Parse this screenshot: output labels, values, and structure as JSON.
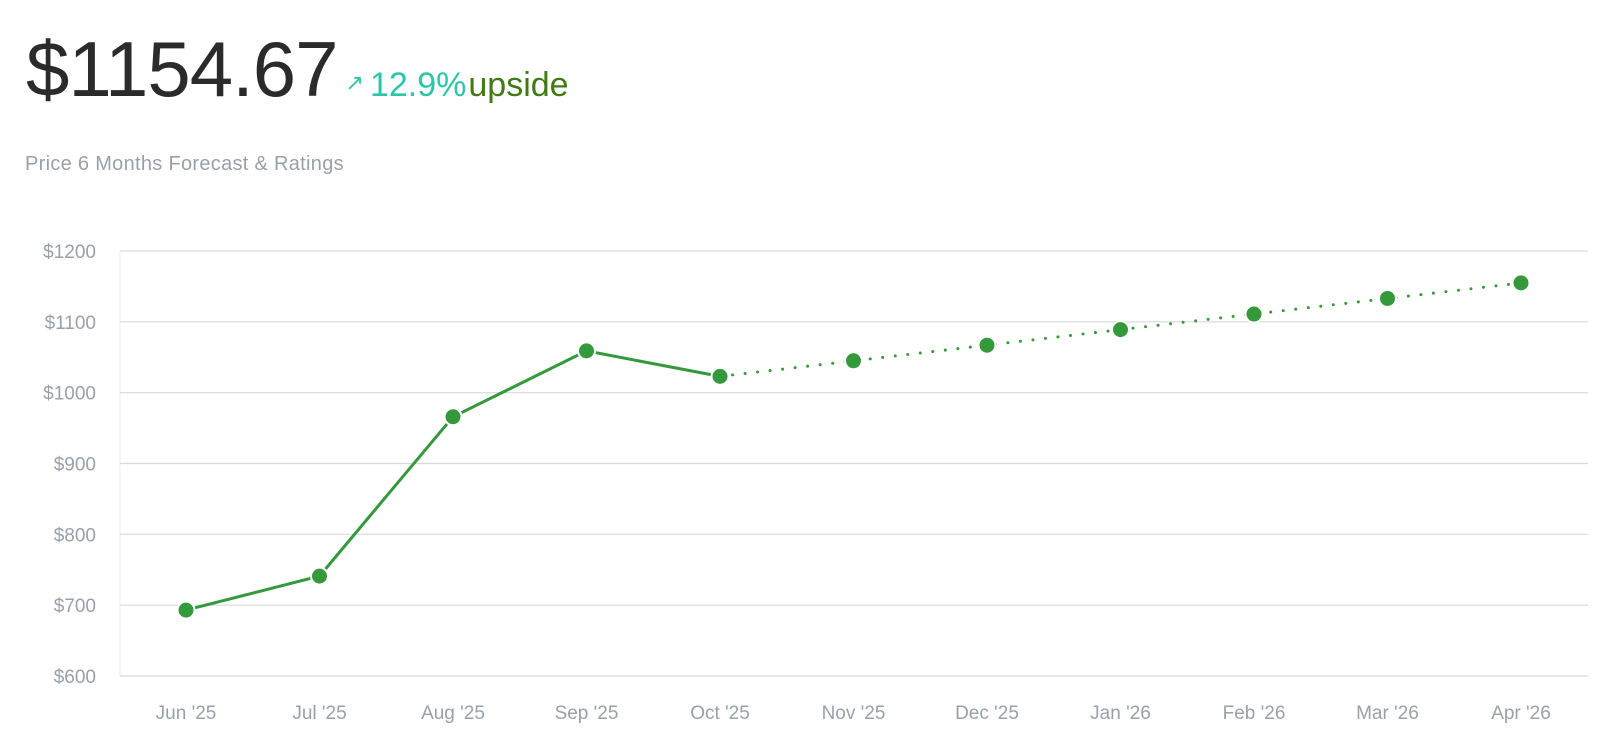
{
  "header": {
    "price": "$1154.67",
    "arrow": "↗",
    "change_percent": "12.9%",
    "change_word": "upside",
    "subtitle": "Price 6 Months Forecast & Ratings"
  },
  "colors": {
    "line": "#34993a",
    "grid": "#d6d9de",
    "tick_text": "#9aa0aa",
    "accent": "#2dc5a8",
    "upside": "#3f7a12"
  },
  "chart_data": {
    "type": "line",
    "categories": [
      "Jun '25",
      "Jul '25",
      "Aug '25",
      "Sep '25",
      "Oct '25",
      "Nov '25",
      "Dec '25",
      "Jan '26",
      "Feb '26",
      "Mar '26",
      "Apr '26"
    ],
    "series": [
      {
        "style": "solid",
        "values": [
          693,
          741,
          966,
          1059,
          1023,
          null,
          null,
          null,
          null,
          null,
          null
        ]
      },
      {
        "style": "dotted",
        "values": [
          null,
          null,
          null,
          null,
          1023,
          1045,
          1067,
          1089,
          1111,
          1133,
          1155
        ]
      }
    ],
    "ylim": [
      600,
      1200
    ],
    "yticks": [
      600,
      700,
      800,
      900,
      1000,
      1100,
      1200
    ],
    "ytick_labels": [
      "$600",
      "$700",
      "$800",
      "$900",
      "$1000",
      "$1100",
      "$1200"
    ],
    "grid": true,
    "title": "",
    "xlabel": "",
    "ylabel": ""
  }
}
